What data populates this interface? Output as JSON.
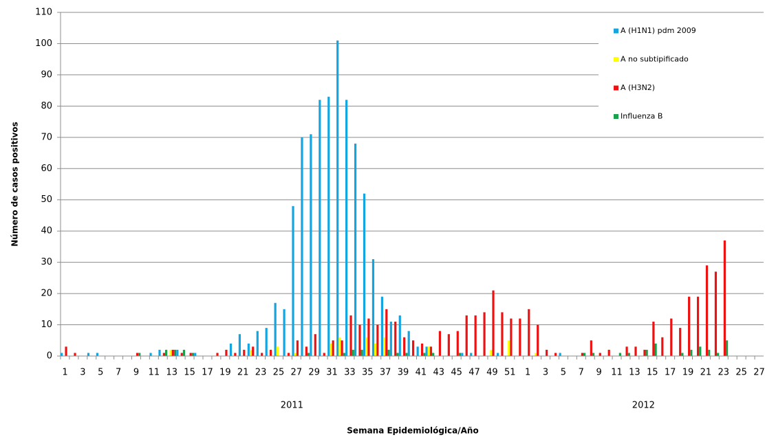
{
  "chart_data": {
    "type": "bar",
    "y_label": "Número de casos positivos",
    "x_label": "Semana Epidemiológica/Año",
    "year_labels": [
      "2011",
      "2012"
    ],
    "categories": [
      "1",
      null,
      "3",
      null,
      "5",
      null,
      "7",
      null,
      "9",
      null,
      "11",
      null,
      "13",
      null,
      "15",
      null,
      "17",
      null,
      "19",
      null,
      "21",
      null,
      "23",
      null,
      "25",
      null,
      "27",
      null,
      "29",
      null,
      "31",
      null,
      "33",
      null,
      "35",
      null,
      "37",
      null,
      "39",
      null,
      "41",
      null,
      "43",
      null,
      "45",
      null,
      "47",
      null,
      "49",
      null,
      "51",
      null,
      "1",
      null,
      "3",
      null,
      "5",
      null,
      "7",
      null,
      "9",
      null,
      "11",
      null,
      "13",
      null,
      "15",
      null,
      "17",
      null,
      "19",
      null,
      "21",
      null,
      "23",
      null,
      "25",
      null,
      "27"
    ],
    "series": [
      {
        "name": "A (H1N1) pdm 2009",
        "color": "#12a5e0",
        "values": [
          1,
          0,
          0,
          1,
          1,
          0,
          0,
          0,
          0,
          0,
          1,
          2,
          0,
          2,
          0,
          1,
          0,
          0,
          0,
          4,
          7,
          4,
          8,
          9,
          17,
          15,
          48,
          70,
          71,
          82,
          83,
          101,
          82,
          68,
          52,
          31,
          19,
          11,
          13,
          8,
          3,
          3,
          0,
          0,
          0,
          1,
          1,
          0,
          0,
          1,
          0,
          0,
          0,
          0,
          0,
          0,
          1,
          0,
          0,
          0,
          0,
          0,
          0,
          0,
          0,
          0,
          0,
          0,
          0,
          0,
          0,
          0,
          0,
          0,
          0,
          0,
          0,
          0,
          0
        ]
      },
      {
        "name": "A no subtipificado",
        "color": "#ffff00",
        "values": [
          0,
          0,
          0,
          0,
          0,
          0,
          0,
          0,
          0,
          0,
          0,
          0,
          2,
          0,
          0,
          0,
          0,
          0,
          0,
          0,
          0,
          2,
          0,
          0,
          3,
          0,
          1,
          0,
          0,
          0,
          4,
          6,
          0,
          0,
          6,
          4,
          6,
          0,
          0,
          0,
          0,
          3,
          0,
          0,
          0,
          0,
          0,
          0,
          2,
          0,
          5,
          0,
          0,
          1,
          0,
          0,
          0,
          0,
          0,
          0,
          0,
          0,
          0,
          0,
          0,
          0,
          0,
          0,
          0,
          0,
          0,
          0,
          0,
          0,
          0,
          0,
          0,
          0,
          0
        ]
      },
      {
        "name": "A (H3N2)",
        "color": "#ee1111",
        "values": [
          3,
          1,
          0,
          0,
          0,
          0,
          0,
          0,
          1,
          0,
          0,
          1,
          2,
          1,
          1,
          0,
          0,
          1,
          2,
          1,
          2,
          3,
          1,
          2,
          0,
          1,
          5,
          3,
          7,
          1,
          5,
          5,
          13,
          10,
          12,
          10,
          15,
          11,
          6,
          5,
          4,
          3,
          8,
          7,
          8,
          13,
          13,
          14,
          21,
          14,
          12,
          12,
          15,
          10,
          2,
          1,
          0,
          0,
          1,
          5,
          1,
          2,
          0,
          3,
          3,
          2,
          11,
          6,
          12,
          9,
          19,
          19,
          29,
          27,
          37,
          0,
          0,
          0,
          0
        ]
      },
      {
        "name": "Influenza  B",
        "color": "#1aa04a",
        "values": [
          0,
          0,
          0,
          0,
          0,
          0,
          0,
          0,
          1,
          0,
          0,
          2,
          2,
          2,
          1,
          0,
          0,
          0,
          0,
          0,
          0,
          0,
          0,
          0,
          0,
          0,
          0,
          1,
          0,
          0,
          0,
          1,
          2,
          2,
          0,
          0,
          2,
          1,
          1,
          0,
          1,
          1,
          0,
          0,
          1,
          0,
          0,
          0,
          0,
          0,
          0,
          0,
          0,
          0,
          0,
          0,
          0,
          0,
          1,
          1,
          0,
          0,
          1,
          1,
          0,
          2,
          4,
          0,
          0,
          1,
          2,
          3,
          2,
          1,
          5,
          0,
          0,
          0,
          0
        ]
      }
    ],
    "ylim": [
      0,
      110
    ],
    "yticks": [
      0,
      10,
      20,
      30,
      40,
      50,
      60,
      70,
      80,
      90,
      100,
      110
    ],
    "grid": true,
    "legend": "top-right"
  }
}
